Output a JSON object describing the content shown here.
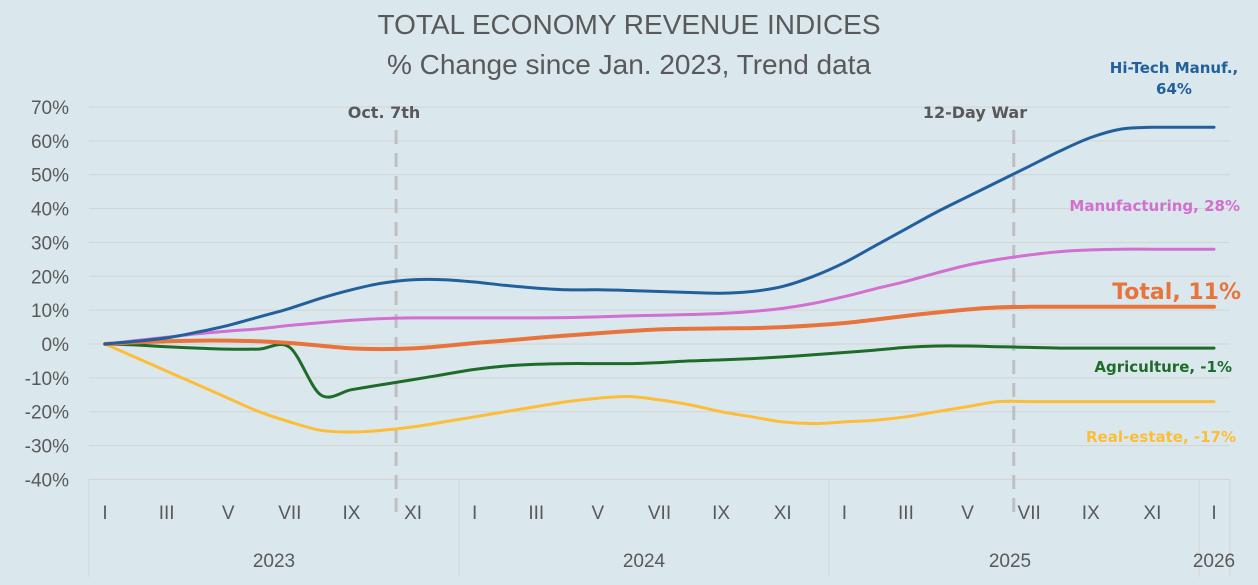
{
  "chart_data": {
    "type": "line",
    "title": "TOTAL ECONOMY REVENUE INDICES",
    "subtitle": "% Change since Jan. 2023, Trend data",
    "xlabel": "",
    "ylabel": "",
    "ylim": [
      -40,
      70
    ],
    "y_ticks": [
      "70%",
      "60%",
      "50%",
      "40%",
      "30%",
      "20%",
      "10%",
      "0%",
      "-10%",
      "-20%",
      "-30%",
      "-40%"
    ],
    "y_tick_values": [
      70,
      60,
      50,
      40,
      30,
      20,
      10,
      0,
      -10,
      -20,
      -30,
      -40
    ],
    "grid": true,
    "x_month_ticks": [
      "I",
      "III",
      "V",
      "VII",
      "IX",
      "XI",
      "I",
      "III",
      "V",
      "VII",
      "IX",
      "XI",
      "I",
      "III",
      "V",
      "VII",
      "IX",
      "XI",
      "I"
    ],
    "x_month_tick_index": [
      0,
      2,
      4,
      6,
      8,
      10,
      12,
      14,
      16,
      18,
      20,
      22,
      24,
      26,
      28,
      30,
      32,
      34,
      36
    ],
    "x_years": [
      {
        "label": "2023",
        "start": 0,
        "end": 12
      },
      {
        "label": "2024",
        "start": 12,
        "end": 24
      },
      {
        "label": "2025",
        "start": 24,
        "end": 36
      },
      {
        "label": "2026",
        "start": 36,
        "end": 37
      }
    ],
    "events": [
      {
        "label": "Oct. 7th",
        "x": 9.45
      },
      {
        "label": "12-Day War",
        "x": 29.5
      }
    ],
    "series": [
      {
        "name": "Hi-Tech Manuf.",
        "end_label": "Hi-Tech Manuf., 64%",
        "color": "#22609c",
        "width": 3,
        "values": [
          0,
          0.8,
          1.8,
          3.5,
          5.5,
          8,
          10.5,
          13.5,
          16,
          18,
          19,
          19,
          18.3,
          17.3,
          16.5,
          16,
          16,
          15.8,
          15.5,
          15.2,
          15,
          15.5,
          17,
          20,
          24,
          29,
          34,
          39,
          43.5,
          48,
          52.5,
          57,
          61,
          63.5,
          64,
          64,
          64
        ]
      },
      {
        "name": "Manufacturing",
        "end_label": "Manufacturing, 28%",
        "color": "#d36fcf",
        "width": 3,
        "values": [
          0,
          1,
          2,
          3,
          3.8,
          4.5,
          5.5,
          6.3,
          7,
          7.5,
          7.7,
          7.7,
          7.7,
          7.7,
          7.7,
          7.8,
          8,
          8.3,
          8.5,
          8.7,
          9,
          9.6,
          10.5,
          12,
          14,
          16.3,
          18.5,
          21,
          23.3,
          25,
          26.3,
          27.3,
          27.8,
          28,
          28,
          28,
          28
        ]
      },
      {
        "name": "Total",
        "end_label": "Total, 11%",
        "color": "#e8743b",
        "width": 4,
        "values": [
          0,
          0.5,
          0.8,
          1,
          1,
          0.8,
          0.3,
          -0.5,
          -1.3,
          -1.5,
          -1.3,
          -0.6,
          0.3,
          1,
          1.8,
          2.5,
          3.2,
          3.8,
          4.3,
          4.5,
          4.6,
          4.7,
          5,
          5.5,
          6.2,
          7.2,
          8.3,
          9.3,
          10.2,
          10.8,
          11,
          11,
          11,
          11,
          11,
          11,
          11
        ]
      },
      {
        "name": "Agriculture",
        "end_label": "Agriculture, -1%",
        "color": "#1e6b2a",
        "width": 3,
        "values": [
          0,
          -0.3,
          -0.8,
          -1.2,
          -1.5,
          -1.5,
          -1,
          -15,
          -13.5,
          -12,
          -10.5,
          -9,
          -7.5,
          -6.5,
          -6,
          -5.8,
          -5.8,
          -5.8,
          -5.5,
          -5,
          -4.7,
          -4.3,
          -3.8,
          -3.2,
          -2.5,
          -1.8,
          -1,
          -0.6,
          -0.6,
          -0.8,
          -1,
          -1.2,
          -1.2,
          -1.2,
          -1.2,
          -1.2,
          -1.2
        ]
      },
      {
        "name": "Real-estate",
        "end_label": "Real-estate, -17%",
        "color": "#fdbd37",
        "width": 3,
        "values": [
          0,
          -4,
          -8,
          -12,
          -16,
          -20,
          -23,
          -25.5,
          -26,
          -25.5,
          -24.5,
          -23,
          -21.5,
          -20,
          -18.5,
          -17,
          -16,
          -15.5,
          -16.5,
          -18,
          -20,
          -21.5,
          -23,
          -23.5,
          -23,
          -22.5,
          -21.5,
          -20,
          -18.5,
          -17,
          -17,
          -17,
          -17,
          -17,
          -17,
          -17,
          -17
        ]
      }
    ]
  }
}
